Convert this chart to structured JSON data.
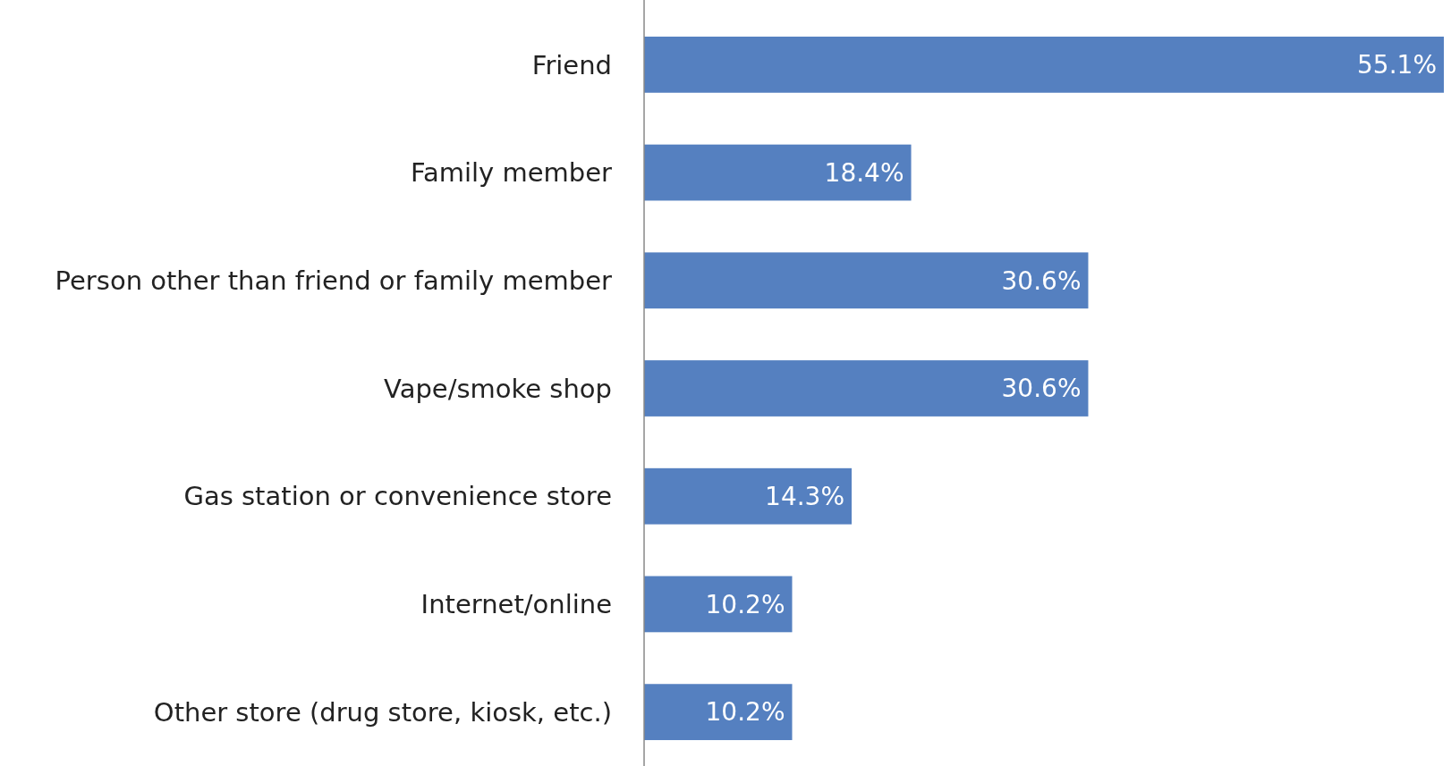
{
  "chart_data": {
    "type": "bar",
    "orientation": "horizontal",
    "categories": [
      "Friend",
      "Family member",
      "Person other than friend or family member",
      "Vape/smoke shop",
      "Gas station or convenience store",
      "Internet/online",
      "Other store (drug store, kiosk, etc.)"
    ],
    "values": [
      55.1,
      18.4,
      30.6,
      30.6,
      14.3,
      10.2,
      10.2
    ],
    "value_labels": [
      "55.1%",
      "18.4%",
      "30.6%",
      "30.6%",
      "14.3%",
      "10.2%",
      "10.2%"
    ],
    "color": "#5580c0"
  }
}
